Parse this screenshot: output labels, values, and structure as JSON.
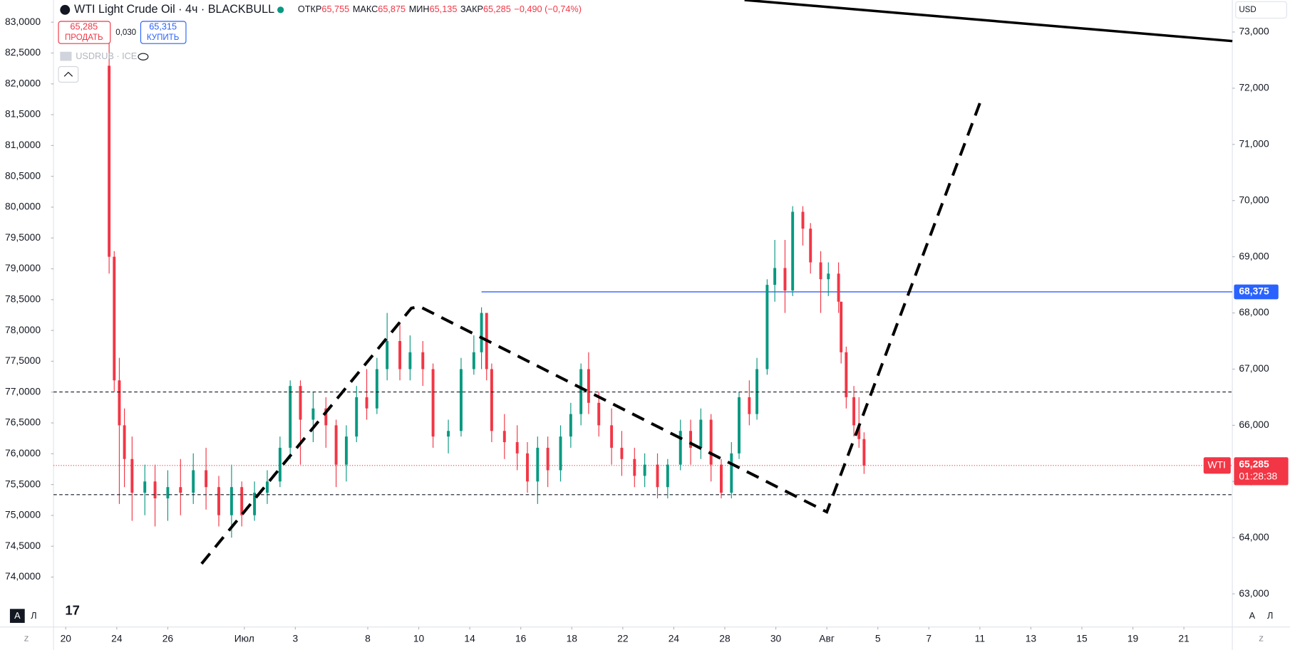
{
  "chart_data": {
    "type": "candlestick",
    "title": "WTI Light Crude Oil · 4ч · BLACKBULL",
    "ohlc": [
      {
        "label": "ОТКР",
        "value": "65,755"
      },
      {
        "label": "МАКС",
        "value": "65,875"
      },
      {
        "label": "МИН",
        "value": "65,135"
      },
      {
        "label": "ЗАКР",
        "value": "65,285"
      }
    ],
    "change": "−0,490 (−0,74%)",
    "up_color": "#089981",
    "down_color": "#f23645",
    "xlim": [
      -0.48,
      45.74
    ],
    "xticks": [
      {
        "value": 0,
        "label": "20"
      },
      {
        "value": 2,
        "label": "24"
      },
      {
        "value": 4,
        "label": "26"
      },
      {
        "value": 7,
        "label": "Июл"
      },
      {
        "value": 9,
        "label": "3"
      },
      {
        "value": 11.84,
        "label": "8"
      },
      {
        "value": 13.84,
        "label": "10"
      },
      {
        "value": 15.84,
        "label": "14"
      },
      {
        "value": 17.84,
        "label": "16"
      },
      {
        "value": 19.84,
        "label": "18"
      },
      {
        "value": 21.84,
        "label": "22"
      },
      {
        "value": 23.84,
        "label": "24"
      },
      {
        "value": 25.84,
        "label": "28"
      },
      {
        "value": 27.84,
        "label": "30"
      },
      {
        "value": 29.84,
        "label": "Авг"
      },
      {
        "value": 31.84,
        "label": "5"
      },
      {
        "value": 33.84,
        "label": "7"
      },
      {
        "value": 35.84,
        "label": "11"
      },
      {
        "value": 37.84,
        "label": "13"
      },
      {
        "value": 39.84,
        "label": "15"
      },
      {
        "value": 41.84,
        "label": "19"
      },
      {
        "value": 43.84,
        "label": "21"
      }
    ],
    "ylim": [
      73.19,
      83.36
    ],
    "yticks": [
      {
        "value": 83,
        "label": "83,0000"
      },
      {
        "value": 82.5,
        "label": "82,5000"
      },
      {
        "value": 82,
        "label": "82,0000"
      },
      {
        "value": 81.5,
        "label": "81,5000"
      },
      {
        "value": 81,
        "label": "81,0000"
      },
      {
        "value": 80.5,
        "label": "80,5000"
      },
      {
        "value": 80,
        "label": "80,0000"
      },
      {
        "value": 79.5,
        "label": "79,5000"
      },
      {
        "value": 79,
        "label": "79,0000"
      },
      {
        "value": 78.5,
        "label": "78,5000"
      },
      {
        "value": 78,
        "label": "78,0000"
      },
      {
        "value": 77.5,
        "label": "77,5000"
      },
      {
        "value": 77,
        "label": "77,0000"
      },
      {
        "value": 76.5,
        "label": "76,5000"
      },
      {
        "value": 76,
        "label": "76,0000"
      },
      {
        "value": 75.5,
        "label": "75,5000"
      },
      {
        "value": 75,
        "label": "75,0000"
      },
      {
        "value": 74.5,
        "label": "74,5000"
      },
      {
        "value": 74,
        "label": "74,0000"
      }
    ],
    "y2lim": [
      62.41,
      73.57
    ],
    "y2ticks": [
      {
        "value": 73,
        "label": "73,000"
      },
      {
        "value": 72,
        "label": "72,000"
      },
      {
        "value": 71,
        "label": "71,000"
      },
      {
        "value": 70,
        "label": "70,000"
      },
      {
        "value": 69,
        "label": "69,000"
      },
      {
        "value": 68,
        "label": "68,000"
      },
      {
        "value": 67,
        "label": "67,000"
      },
      {
        "value": 66,
        "label": "66,000"
      },
      {
        "value": 65,
        "label": "65,000"
      },
      {
        "value": 64,
        "label": "64,000"
      },
      {
        "value": 63,
        "label": "63,000"
      }
    ],
    "currency": "USD",
    "hline": {
      "value": 68.375,
      "label": "68,375",
      "color": "#2962ff",
      "start_x": 16.3
    },
    "last_price": {
      "symbol": "WTI",
      "value": 65.285,
      "label": "65,285",
      "countdown": "01:28:38"
    },
    "candles": [
      {
        "x": 1.7,
        "open": 72.4,
        "high": 73.0,
        "low": 68.7,
        "close": 69.0
      },
      {
        "x": 1.9,
        "open": 69.0,
        "high": 69.1,
        "low": 66.6,
        "close": 66.8
      },
      {
        "x": 2.1,
        "open": 66.8,
        "high": 67.2,
        "low": 64.6,
        "close": 66.0
      },
      {
        "x": 2.3,
        "open": 66.0,
        "high": 66.3,
        "low": 64.9,
        "close": 65.4
      },
      {
        "x": 2.6,
        "open": 65.4,
        "high": 65.8,
        "low": 64.3,
        "close": 64.8
      },
      {
        "x": 3.1,
        "open": 64.8,
        "high": 65.3,
        "low": 64.4,
        "close": 65.0
      },
      {
        "x": 3.5,
        "open": 65.0,
        "high": 65.3,
        "low": 64.2,
        "close": 64.7
      },
      {
        "x": 4.0,
        "open": 64.7,
        "high": 65.2,
        "low": 64.3,
        "close": 64.9
      },
      {
        "x": 4.5,
        "open": 64.9,
        "high": 65.4,
        "low": 64.4,
        "close": 64.8
      },
      {
        "x": 5.0,
        "open": 64.8,
        "high": 65.5,
        "low": 64.6,
        "close": 65.2
      },
      {
        "x": 5.5,
        "open": 65.2,
        "high": 65.6,
        "low": 64.5,
        "close": 64.9
      },
      {
        "x": 6.0,
        "open": 64.9,
        "high": 65.1,
        "low": 64.2,
        "close": 64.4
      },
      {
        "x": 6.5,
        "open": 64.4,
        "high": 65.3,
        "low": 64.0,
        "close": 64.9
      },
      {
        "x": 6.9,
        "open": 64.9,
        "high": 65.0,
        "low": 64.2,
        "close": 64.4
      },
      {
        "x": 7.4,
        "open": 64.4,
        "high": 65.0,
        "low": 64.3,
        "close": 64.8
      },
      {
        "x": 7.9,
        "open": 64.8,
        "high": 65.2,
        "low": 64.6,
        "close": 65.0
      },
      {
        "x": 8.4,
        "open": 65.0,
        "high": 65.8,
        "low": 64.9,
        "close": 65.6
      },
      {
        "x": 8.8,
        "open": 65.6,
        "high": 66.8,
        "low": 65.4,
        "close": 66.7
      },
      {
        "x": 9.2,
        "open": 66.7,
        "high": 66.8,
        "low": 65.3,
        "close": 66.1
      },
      {
        "x": 9.7,
        "open": 66.1,
        "high": 66.6,
        "low": 65.7,
        "close": 66.3
      },
      {
        "x": 10.2,
        "open": 66.3,
        "high": 66.5,
        "low": 65.6,
        "close": 66.0
      },
      {
        "x": 10.6,
        "open": 66.0,
        "high": 66.1,
        "low": 64.9,
        "close": 65.3
      },
      {
        "x": 11.0,
        "open": 65.3,
        "high": 66.0,
        "low": 65.0,
        "close": 65.8
      },
      {
        "x": 11.4,
        "open": 65.8,
        "high": 66.7,
        "low": 65.7,
        "close": 66.5
      },
      {
        "x": 11.8,
        "open": 66.5,
        "high": 67.0,
        "low": 66.1,
        "close": 66.3
      },
      {
        "x": 12.2,
        "open": 66.3,
        "high": 67.2,
        "low": 66.2,
        "close": 67.0
      },
      {
        "x": 12.6,
        "open": 67.0,
        "high": 68.0,
        "low": 66.8,
        "close": 67.5
      },
      {
        "x": 13.1,
        "open": 67.5,
        "high": 67.8,
        "low": 66.8,
        "close": 67.0
      },
      {
        "x": 13.5,
        "open": 67.0,
        "high": 67.6,
        "low": 66.8,
        "close": 67.3
      },
      {
        "x": 14.0,
        "open": 67.3,
        "high": 67.5,
        "low": 66.7,
        "close": 67.0
      },
      {
        "x": 14.4,
        "open": 67.0,
        "high": 67.1,
        "low": 65.6,
        "close": 65.8
      },
      {
        "x": 15.0,
        "open": 65.8,
        "high": 66.1,
        "low": 65.5,
        "close": 65.9
      },
      {
        "x": 15.5,
        "open": 65.9,
        "high": 67.2,
        "low": 65.8,
        "close": 67.0
      },
      {
        "x": 16.0,
        "open": 67.0,
        "high": 67.6,
        "low": 66.9,
        "close": 67.3
      },
      {
        "x": 16.3,
        "open": 67.3,
        "high": 68.1,
        "low": 67.0,
        "close": 68.0
      },
      {
        "x": 16.5,
        "open": 68.0,
        "high": 68.0,
        "low": 66.8,
        "close": 67.0
      },
      {
        "x": 16.7,
        "open": 67.0,
        "high": 67.1,
        "low": 65.7,
        "close": 65.9
      },
      {
        "x": 17.2,
        "open": 65.9,
        "high": 66.2,
        "low": 65.4,
        "close": 65.7
      },
      {
        "x": 17.7,
        "open": 65.7,
        "high": 66.0,
        "low": 65.2,
        "close": 65.5
      },
      {
        "x": 18.1,
        "open": 65.5,
        "high": 65.7,
        "low": 64.8,
        "close": 65.0
      },
      {
        "x": 18.5,
        "open": 65.0,
        "high": 65.8,
        "low": 64.6,
        "close": 65.6
      },
      {
        "x": 18.9,
        "open": 65.6,
        "high": 65.8,
        "low": 64.9,
        "close": 65.2
      },
      {
        "x": 19.4,
        "open": 65.2,
        "high": 66.0,
        "low": 65.0,
        "close": 65.8
      },
      {
        "x": 19.8,
        "open": 65.8,
        "high": 66.4,
        "low": 65.6,
        "close": 66.2
      },
      {
        "x": 20.2,
        "open": 66.2,
        "high": 67.1,
        "low": 66.0,
        "close": 67.0
      },
      {
        "x": 20.5,
        "open": 67.0,
        "high": 67.3,
        "low": 66.2,
        "close": 66.4
      },
      {
        "x": 20.9,
        "open": 66.4,
        "high": 66.6,
        "low": 65.8,
        "close": 66.0
      },
      {
        "x": 21.4,
        "open": 66.0,
        "high": 66.3,
        "low": 65.3,
        "close": 65.6
      },
      {
        "x": 21.8,
        "open": 65.6,
        "high": 65.9,
        "low": 65.1,
        "close": 65.4
      },
      {
        "x": 22.3,
        "open": 65.4,
        "high": 65.6,
        "low": 64.9,
        "close": 65.1
      },
      {
        "x": 22.7,
        "open": 65.1,
        "high": 65.5,
        "low": 64.9,
        "close": 65.3
      },
      {
        "x": 23.2,
        "open": 65.3,
        "high": 65.5,
        "low": 64.7,
        "close": 64.9
      },
      {
        "x": 23.6,
        "open": 64.9,
        "high": 65.4,
        "low": 64.7,
        "close": 65.3
      },
      {
        "x": 24.1,
        "open": 65.3,
        "high": 66.1,
        "low": 65.2,
        "close": 65.9
      },
      {
        "x": 24.5,
        "open": 65.9,
        "high": 66.1,
        "low": 65.3,
        "close": 65.6
      },
      {
        "x": 24.9,
        "open": 65.6,
        "high": 66.3,
        "low": 65.4,
        "close": 66.1
      },
      {
        "x": 25.3,
        "open": 66.1,
        "high": 66.2,
        "low": 65.0,
        "close": 65.3
      },
      {
        "x": 25.7,
        "open": 65.3,
        "high": 65.4,
        "low": 64.7,
        "close": 64.8
      },
      {
        "x": 26.1,
        "open": 64.8,
        "high": 65.7,
        "low": 64.7,
        "close": 65.5
      },
      {
        "x": 26.4,
        "open": 65.5,
        "high": 66.6,
        "low": 65.4,
        "close": 66.5
      },
      {
        "x": 26.8,
        "open": 66.5,
        "high": 66.8,
        "low": 66.0,
        "close": 66.2
      },
      {
        "x": 27.1,
        "open": 66.2,
        "high": 67.2,
        "low": 66.1,
        "close": 67.0
      },
      {
        "x": 27.5,
        "open": 67.0,
        "high": 68.6,
        "low": 66.9,
        "close": 68.5
      },
      {
        "x": 27.8,
        "open": 68.5,
        "high": 69.3,
        "low": 68.2,
        "close": 68.8
      },
      {
        "x": 28.2,
        "open": 68.8,
        "high": 69.3,
        "low": 68.0,
        "close": 68.4
      },
      {
        "x": 28.5,
        "open": 68.4,
        "high": 69.9,
        "low": 68.3,
        "close": 69.8
      },
      {
        "x": 28.9,
        "open": 69.8,
        "high": 69.9,
        "low": 69.2,
        "close": 69.5
      },
      {
        "x": 29.2,
        "open": 69.5,
        "high": 69.6,
        "low": 68.7,
        "close": 68.9
      },
      {
        "x": 29.6,
        "open": 68.9,
        "high": 69.1,
        "low": 68.0,
        "close": 68.6
      },
      {
        "x": 29.9,
        "open": 68.6,
        "high": 68.9,
        "low": 68.3,
        "close": 68.7
      },
      {
        "x": 30.3,
        "open": 68.7,
        "high": 68.9,
        "low": 68.0,
        "close": 68.2
      },
      {
        "x": 30.4,
        "open": 68.2,
        "high": 68.2,
        "low": 67.1,
        "close": 67.3
      },
      {
        "x": 30.6,
        "open": 67.3,
        "high": 67.4,
        "low": 66.3,
        "close": 66.5
      },
      {
        "x": 30.9,
        "open": 66.5,
        "high": 66.7,
        "low": 65.8,
        "close": 66.0
      },
      {
        "x": 31.1,
        "open": 66.0,
        "high": 66.5,
        "low": 65.6,
        "close": 65.755
      },
      {
        "x": 31.3,
        "open": 65.755,
        "high": 65.875,
        "low": 65.135,
        "close": 65.285
      }
    ]
  },
  "ui": {
    "sell_price": "65,285",
    "sell_label": "ПРОДАТЬ",
    "spread": "0,030",
    "buy_price": "65,315",
    "buy_label": "КУПИТЬ",
    "compare_symbol": "USDRUB · ICE",
    "scale_auto": "A",
    "scale_log": "Л",
    "zoom_icon": "Z",
    "logo": "17"
  }
}
